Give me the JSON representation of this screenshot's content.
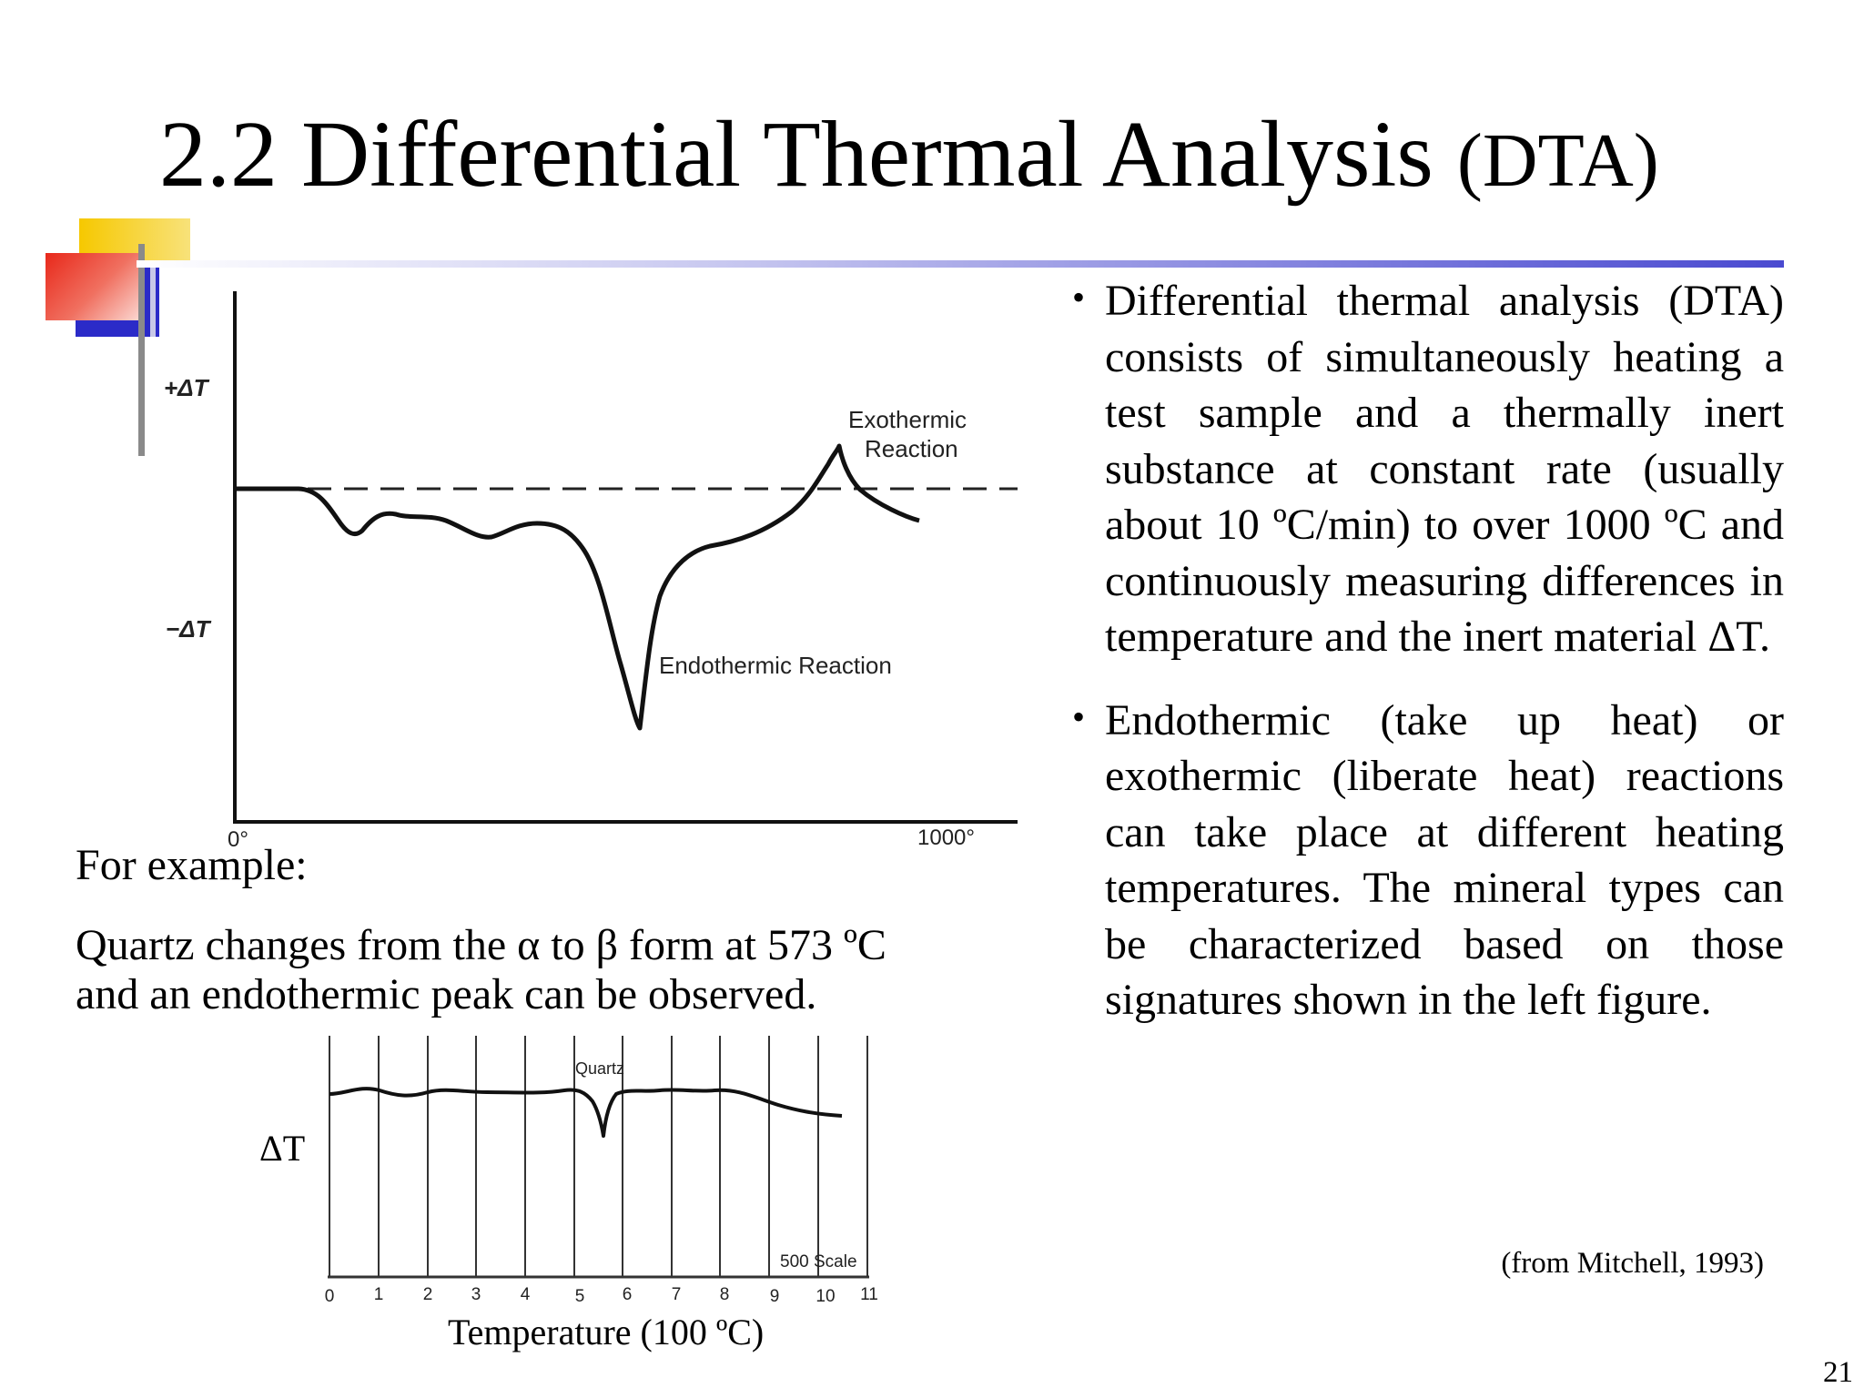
{
  "slide": {
    "title": "2.2 Differential Thermal Analysis",
    "title_suffix": "(DTA)",
    "slide_number": "21"
  },
  "figure_main": {
    "y_plus_label": "+ΔT",
    "y_minus_label": "−ΔT",
    "x_start_label": "0°",
    "x_end_label": "1000°",
    "exo_label_1": "Exothermic",
    "exo_label_2": "Reaction",
    "endo_label": "Endothermic Reaction"
  },
  "example": {
    "heading": "For example:",
    "line1": "Quartz changes from the α to β form at 573 ºC",
    "line2": "and an endothermic peak can be observed."
  },
  "figure_quartz": {
    "y_label": "ΔT",
    "x_label": "Temperature (100 ºC)",
    "peak_label": "Quartz",
    "scale_label": "500 Scale",
    "ticks": [
      "0",
      "1",
      "2",
      "3",
      "4",
      "5",
      "6",
      "7",
      "8",
      "9",
      "10",
      "11"
    ]
  },
  "bullets": [
    "Differential thermal analysis (DTA) consists of simultaneously heating a test sample and a thermally inert substance at constant rate (usually about 10 ºC/min) to over 1000 ºC and continuously measuring differences in temperature and the inert material ΔT.",
    "Endothermic (take up heat) or exothermic (liberate heat) reactions can take place at different heating temperatures. The mineral types can be characterized based on those signatures shown in the left figure."
  ],
  "citation": "(from Mitchell, 1993)",
  "colors": {
    "accent_yellow": "#f6c800",
    "accent_red": "#e8281a",
    "accent_blue": "#2b2bc8",
    "rule_blue": "#4a4ad0"
  }
}
